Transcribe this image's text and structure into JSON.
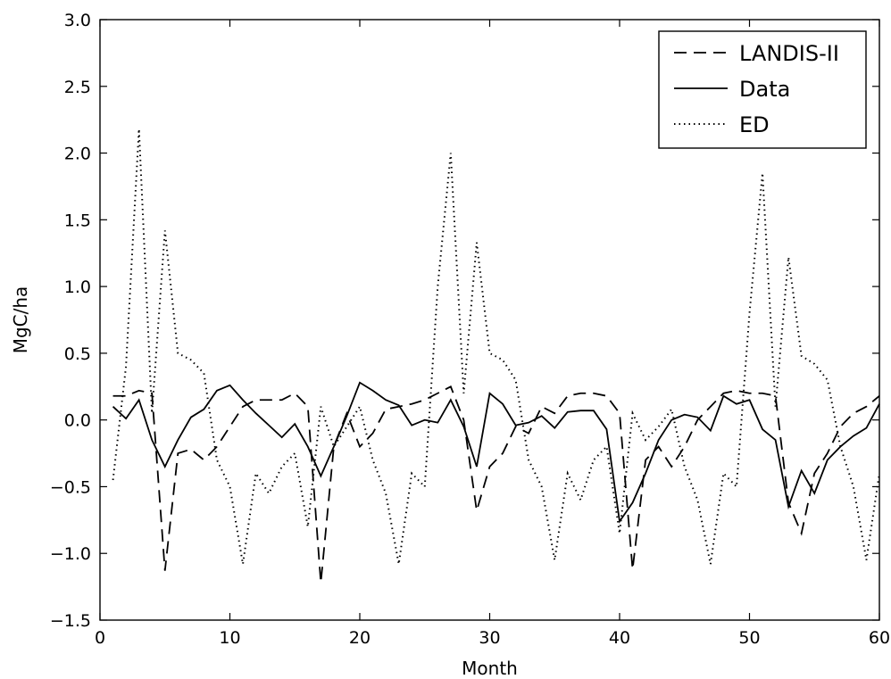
{
  "chart_data": {
    "type": "line",
    "title": "",
    "xlabel": "Month",
    "ylabel": "MgC/ha",
    "xlim": [
      0,
      60
    ],
    "ylim": [
      -1.5,
      3.0
    ],
    "xticks": [
      0,
      10,
      20,
      30,
      40,
      50,
      60
    ],
    "yticks": [
      -1.5,
      -1.0,
      -0.5,
      0.0,
      0.5,
      1.0,
      1.5,
      2.0,
      2.5,
      3.0
    ],
    "xtick_labels": [
      "0",
      "10",
      "20",
      "30",
      "40",
      "50",
      "60"
    ],
    "ytick_labels": [
      "−1.5",
      "−1.0",
      "−0.5",
      "0.0",
      "0.5",
      "1.0",
      "1.5",
      "2.0",
      "2.5",
      "3.0"
    ],
    "grid": false,
    "legend_position": "top-right",
    "x": [
      1,
      2,
      3,
      4,
      5,
      6,
      7,
      8,
      9,
      10,
      11,
      12,
      13,
      14,
      15,
      16,
      17,
      18,
      19,
      20,
      21,
      22,
      23,
      24,
      25,
      26,
      27,
      28,
      29,
      30,
      31,
      32,
      33,
      34,
      35,
      36,
      37,
      38,
      39,
      40,
      41,
      42,
      43,
      44,
      45,
      46,
      47,
      48,
      49,
      50,
      51,
      52,
      53,
      54,
      55,
      56,
      57,
      58,
      59,
      60
    ],
    "series": [
      {
        "name": "LANDIS-II",
        "style": "dashed",
        "color": "#000000",
        "values": [
          0.18,
          0.18,
          0.22,
          0.2,
          -1.13,
          -0.25,
          -0.22,
          -0.3,
          -0.2,
          -0.05,
          0.1,
          0.15,
          0.15,
          0.15,
          0.2,
          0.1,
          -1.22,
          -0.2,
          0.05,
          -0.2,
          -0.1,
          0.08,
          0.1,
          0.12,
          0.15,
          0.2,
          0.25,
          0.0,
          -0.68,
          -0.35,
          -0.25,
          -0.05,
          -0.1,
          0.1,
          0.05,
          0.18,
          0.2,
          0.2,
          0.18,
          0.05,
          -1.12,
          -0.3,
          -0.2,
          -0.35,
          -0.2,
          0.0,
          0.1,
          0.2,
          0.22,
          0.2,
          0.2,
          0.18,
          -0.62,
          -0.85,
          -0.4,
          -0.25,
          -0.05,
          0.05,
          0.1,
          0.18
        ]
      },
      {
        "name": "Data",
        "style": "solid",
        "color": "#000000",
        "values": [
          0.1,
          0.01,
          0.15,
          -0.15,
          -0.35,
          -0.15,
          0.02,
          0.08,
          0.22,
          0.26,
          0.15,
          0.05,
          -0.04,
          -0.13,
          -0.03,
          -0.2,
          -0.42,
          -0.2,
          0.03,
          0.28,
          0.22,
          0.15,
          0.11,
          -0.04,
          0.0,
          -0.02,
          0.15,
          -0.05,
          -0.35,
          0.2,
          0.12,
          -0.04,
          -0.02,
          0.03,
          -0.06,
          0.06,
          0.07,
          0.07,
          -0.07,
          -0.76,
          -0.62,
          -0.4,
          -0.15,
          0.0,
          0.04,
          0.02,
          -0.08,
          0.18,
          0.12,
          0.15,
          -0.07,
          -0.15,
          -0.65,
          -0.38,
          -0.55,
          -0.3,
          -0.2,
          -0.12,
          -0.06,
          0.12
        ]
      },
      {
        "name": "ED",
        "style": "dotted",
        "color": "#000000",
        "values": [
          -0.45,
          0.4,
          2.18,
          0.05,
          1.42,
          0.5,
          0.45,
          0.35,
          -0.3,
          -0.5,
          -1.08,
          -0.4,
          -0.55,
          -0.35,
          -0.25,
          -0.8,
          0.1,
          -0.2,
          -0.05,
          0.1,
          -0.3,
          -0.55,
          -1.08,
          -0.4,
          -0.5,
          1.0,
          2.0,
          0.2,
          1.33,
          0.5,
          0.45,
          0.3,
          -0.3,
          -0.5,
          -1.05,
          -0.4,
          -0.6,
          -0.3,
          -0.2,
          -0.85,
          0.05,
          -0.15,
          -0.05,
          0.08,
          -0.35,
          -0.6,
          -1.08,
          -0.4,
          -0.5,
          0.8,
          1.85,
          0.1,
          1.22,
          0.48,
          0.42,
          0.3,
          -0.2,
          -0.5,
          -1.05,
          -0.4
        ]
      }
    ]
  }
}
